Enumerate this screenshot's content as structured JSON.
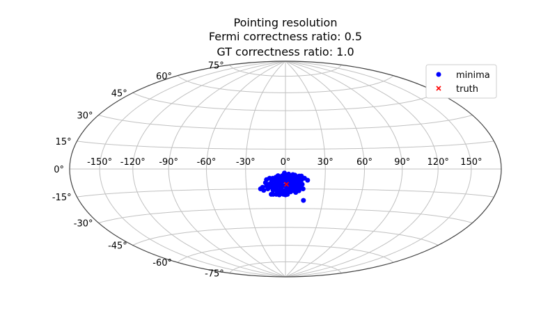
{
  "chart_data": {
    "type": "scatter",
    "projection": "aitoff-like (elliptical, sky map)",
    "title_lines": [
      "Pointing resolution",
      "Fermi correctness ratio: 0.5",
      "GT correctness ratio: 1.0"
    ],
    "xlabel": "",
    "ylabel": "",
    "grid": true,
    "x_tick_labels": [
      "-150°",
      "-120°",
      "-90°",
      "-60°",
      "-30°",
      "0°",
      "30°",
      "60°",
      "90°",
      "120°",
      "150°"
    ],
    "x_tick_values": [
      -150,
      -120,
      -90,
      -60,
      -30,
      0,
      30,
      60,
      90,
      120,
      150
    ],
    "y_tick_labels": [
      "-75°",
      "-60°",
      "-45°",
      "-30°",
      "-15°",
      "0°",
      "15°",
      "30°",
      "45°",
      "60°",
      "75°"
    ],
    "y_tick_values": [
      -75,
      -60,
      -45,
      -30,
      -15,
      0,
      15,
      30,
      45,
      60,
      75
    ],
    "legend": {
      "placement": "top-right",
      "entries": [
        "minima",
        "truth"
      ]
    },
    "colors": {
      "minima": "#0000ff",
      "truth": "#ff0000",
      "grid": "#c0c0c0",
      "frame": "#404040"
    },
    "series": [
      {
        "name": "minima",
        "marker": "circle",
        "points": [
          [
            -0.8,
            -3.0
          ],
          [
            2.4,
            -3.8
          ],
          [
            5.6,
            -4.2
          ],
          [
            7.2,
            -4.6
          ],
          [
            -5.6,
            -5.0
          ],
          [
            -2.4,
            -5.0
          ],
          [
            0.0,
            -5.3
          ],
          [
            3.2,
            -5.3
          ],
          [
            6.4,
            -5.3
          ],
          [
            10.4,
            -5.3
          ],
          [
            12.0,
            -5.3
          ],
          [
            -7.2,
            -6.1
          ],
          [
            -3.2,
            -6.1
          ],
          [
            1.6,
            -6.1
          ],
          [
            4.8,
            -6.1
          ],
          [
            7.2,
            -6.1
          ],
          [
            9.6,
            -6.5
          ],
          [
            -12.0,
            -6.9
          ],
          [
            -9.6,
            -6.9
          ],
          [
            -6.4,
            -6.9
          ],
          [
            -1.6,
            -7.2
          ],
          [
            2.4,
            -7.2
          ],
          [
            5.6,
            -7.2
          ],
          [
            8.0,
            -7.2
          ],
          [
            14.4,
            -6.9
          ],
          [
            -14.4,
            -8.0
          ],
          [
            -10.4,
            -8.4
          ],
          [
            -4.8,
            -8.0
          ],
          [
            0.0,
            -8.4
          ],
          [
            4.0,
            -8.4
          ],
          [
            6.4,
            -8.4
          ],
          [
            12.0,
            -8.4
          ],
          [
            16.8,
            -8.4
          ],
          [
            -8.0,
            -9.2
          ],
          [
            -2.4,
            -9.2
          ],
          [
            2.4,
            -9.2
          ],
          [
            8.8,
            -9.2
          ],
          [
            -15.2,
            -10.3
          ],
          [
            -11.2,
            -10.7
          ],
          [
            -6.4,
            -10.3
          ],
          [
            -3.2,
            -10.3
          ],
          [
            1.6,
            -10.3
          ],
          [
            4.8,
            -10.3
          ],
          [
            8.0,
            -10.3
          ],
          [
            11.2,
            -10.3
          ],
          [
            -12.8,
            -11.5
          ],
          [
            -8.0,
            -11.5
          ],
          [
            -4.0,
            -11.5
          ],
          [
            0.8,
            -11.5
          ],
          [
            3.2,
            -11.8
          ],
          [
            6.4,
            -11.8
          ],
          [
            10.4,
            -11.8
          ],
          [
            12.8,
            -11.5
          ],
          [
            -14.4,
            -12.6
          ],
          [
            -10.4,
            -12.6
          ],
          [
            -6.4,
            -13.0
          ],
          [
            -1.6,
            -12.6
          ],
          [
            2.4,
            -12.6
          ],
          [
            8.8,
            -12.6
          ],
          [
            -17.6,
            -13.7
          ],
          [
            -12.0,
            -13.7
          ],
          [
            -8.0,
            -14.1
          ],
          [
            -3.2,
            -14.1
          ],
          [
            0.8,
            -14.1
          ],
          [
            4.8,
            -13.7
          ],
          [
            8.0,
            -13.7
          ],
          [
            12.0,
            -14.1
          ],
          [
            -19.2,
            -14.9
          ],
          [
            -13.6,
            -14.9
          ],
          [
            -7.2,
            -15.3
          ],
          [
            1.6,
            -15.3
          ],
          [
            5.6,
            -15.3
          ],
          [
            9.6,
            -15.3
          ],
          [
            13.6,
            -14.9
          ],
          [
            -16.8,
            -16.0
          ],
          [
            -9.6,
            -16.0
          ],
          [
            -4.8,
            -16.0
          ],
          [
            -1.6,
            -16.4
          ],
          [
            2.4,
            -16.0
          ],
          [
            6.4,
            -16.4
          ],
          [
            10.4,
            -16.4
          ],
          [
            -6.4,
            -17.2
          ],
          [
            -4.0,
            -17.2
          ],
          [
            -2.4,
            -17.2
          ],
          [
            0.0,
            -17.6
          ],
          [
            4.0,
            -17.2
          ],
          [
            8.0,
            -17.6
          ],
          [
            -11.2,
            -19.1
          ],
          [
            -9.6,
            -19.1
          ],
          [
            -7.2,
            -19.1
          ],
          [
            -4.8,
            -19.5
          ],
          [
            -1.6,
            -19.1
          ],
          [
            0.0,
            -19.5
          ],
          [
            1.6,
            -19.1
          ],
          [
            14.4,
            -23.7
          ]
        ]
      },
      {
        "name": "truth",
        "marker": "x",
        "points": [
          [
            0.8,
            -11.5
          ]
        ]
      }
    ]
  }
}
